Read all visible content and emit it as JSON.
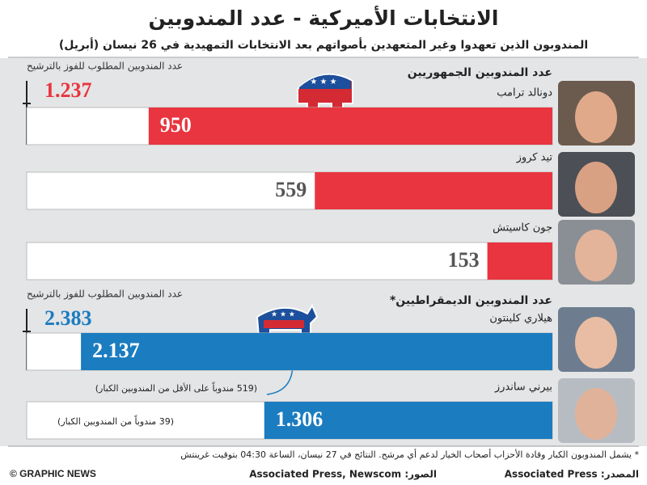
{
  "title": "الانتخابات الأميركية - عدد المندوبين",
  "subtitle": "المندوبون الذين تعهدوا وغير المتعهدين بأصواتهم بعد الانتخابات التمهيدية في 26 نيسان (أبريل)",
  "chart_data": [
    {
      "type": "bar",
      "orientation": "horizontal",
      "title": "عدد المندوبين الجمهوريين",
      "threshold_label": "عدد المندوبين المطلوب للفوز بالترشيح",
      "threshold": 1237,
      "threshold_value_label": "1.237",
      "color": "#e8353f",
      "categories": [
        "دونالد ترامب",
        "تيد كروز",
        "جون كاسيتش"
      ],
      "values": [
        950,
        559,
        153
      ]
    },
    {
      "type": "bar",
      "orientation": "horizontal",
      "title": "عدد المندوبين الديمقراطيين*",
      "threshold_label": "عدد المندوبين المطلوب للفوز بالترشيح",
      "threshold": 2383,
      "threshold_value_label": "2.383",
      "color": "#1b7cc0",
      "categories": [
        "هيلاري كلينتون",
        "بيرني ساندرز"
      ],
      "values": [
        2137,
        1306
      ],
      "value_labels": [
        "2.137",
        "1.306"
      ],
      "annotations": [
        "(519 مندوباً على الأقل من المندوبين الكبار)",
        "(39 مندوباً من المندوبين الكبار)"
      ]
    }
  ],
  "footnote": "* يشمل المندوبون الكبار وقادة الأحزاب أصحاب الخيار لدعم أي مرشح. النتائج في 27 نيسان، الساعة 04:30 بتوقيت غرينتش",
  "credits": {
    "logo": "© GRAPHIC NEWS",
    "photos": "الصور: Associated Press, Newscom",
    "source": "المصدر: Associated Press"
  }
}
